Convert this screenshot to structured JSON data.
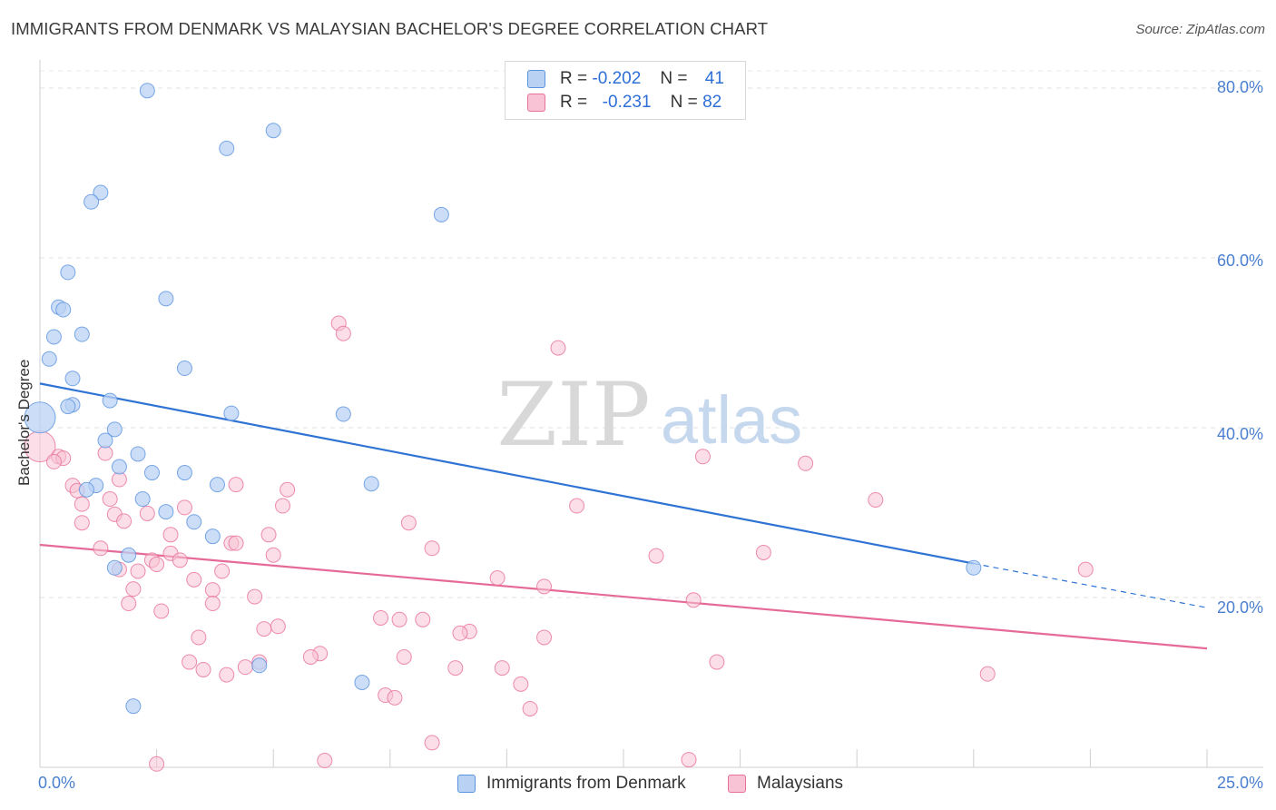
{
  "title": "IMMIGRANTS FROM DENMARK VS MALAYSIAN BACHELOR'S DEGREE CORRELATION CHART",
  "source": "Source: ZipAtlas.com",
  "watermark": {
    "zip": "ZIP",
    "atlas": "atlas"
  },
  "colors": {
    "blue": "#5b93e0",
    "blue_fill": "#b9d2f4",
    "pink": "#e8709b",
    "pink_fill": "#f8c3d4",
    "tick_text": "#4a7fd0"
  },
  "legend": {
    "rows": [
      {
        "r_label": "R =",
        "r_value": "-0.202",
        "n_label": "N =",
        "n_value": "41"
      },
      {
        "r_label": "R =",
        "r_value": "-0.231",
        "n_label": "N =",
        "n_value": "82"
      }
    ]
  },
  "bottom_legend": {
    "blue": "Immigrants from Denmark",
    "pink": "Malaysians"
  },
  "chart_data": {
    "type": "scatter",
    "title": "IMMIGRANTS FROM DENMARK VS MALAYSIAN BACHELOR'S DEGREE CORRELATION CHART",
    "xlabel": "",
    "ylabel": "Bachelor's Degree",
    "xlim": [
      0,
      25
    ],
    "ylim": [
      0,
      80
    ],
    "x_tick_labels": [
      "0.0%",
      "25.0%"
    ],
    "y_tick_labels": [
      "80.0%",
      "60.0%",
      "40.0%",
      "20.0%"
    ],
    "y_ticks": [
      80,
      60,
      40,
      20
    ],
    "grid": true,
    "series": [
      {
        "name": "Immigrants from Denmark",
        "color": "#5b93e0",
        "r": -0.202,
        "n": 41,
        "trend": {
          "x0": 0,
          "y0": 45.2,
          "x1": 20.0,
          "y1": 24.0,
          "dash_to_x": 25,
          "dash_to_y": 18.8
        },
        "points": [
          [
            2.3,
            79.7
          ],
          [
            5.0,
            75.0
          ],
          [
            4.0,
            72.9
          ],
          [
            1.3,
            67.7
          ],
          [
            1.1,
            66.6
          ],
          [
            8.6,
            65.1
          ],
          [
            0.6,
            58.3
          ],
          [
            2.7,
            55.2
          ],
          [
            0.4,
            54.2
          ],
          [
            0.5,
            53.9
          ],
          [
            0.9,
            51.0
          ],
          [
            0.3,
            50.7
          ],
          [
            0.2,
            48.1
          ],
          [
            3.1,
            47.0
          ],
          [
            0.7,
            45.8
          ],
          [
            1.5,
            43.2
          ],
          [
            0.7,
            42.7
          ],
          [
            0.6,
            42.5
          ],
          [
            4.1,
            41.7
          ],
          [
            6.5,
            41.6
          ],
          [
            0.0,
            41.2
          ],
          [
            1.6,
            39.8
          ],
          [
            1.4,
            38.5
          ],
          [
            2.1,
            36.9
          ],
          [
            1.7,
            35.4
          ],
          [
            2.4,
            34.7
          ],
          [
            3.1,
            34.7
          ],
          [
            3.8,
            33.3
          ],
          [
            7.1,
            33.4
          ],
          [
            1.2,
            33.2
          ],
          [
            1.0,
            32.7
          ],
          [
            2.2,
            31.6
          ],
          [
            2.7,
            30.1
          ],
          [
            3.3,
            28.9
          ],
          [
            3.7,
            27.2
          ],
          [
            1.9,
            25.0
          ],
          [
            1.6,
            23.5
          ],
          [
            20.0,
            23.5
          ],
          [
            4.7,
            12.0
          ],
          [
            6.9,
            10.0
          ],
          [
            2.0,
            7.2
          ]
        ]
      },
      {
        "name": "Malaysians",
        "color": "#e8709b",
        "r": -0.231,
        "n": 82,
        "trend": {
          "x0": 0,
          "y0": 26.2,
          "x1": 25,
          "y1": 14.0
        },
        "points": [
          [
            6.4,
            52.3
          ],
          [
            6.5,
            51.1
          ],
          [
            11.1,
            49.4
          ],
          [
            0.0,
            37.8
          ],
          [
            1.4,
            37.0
          ],
          [
            0.4,
            36.6
          ],
          [
            0.5,
            36.4
          ],
          [
            0.3,
            36.0
          ],
          [
            14.2,
            36.6
          ],
          [
            16.4,
            35.8
          ],
          [
            0.7,
            33.2
          ],
          [
            1.7,
            33.9
          ],
          [
            4.2,
            33.3
          ],
          [
            5.3,
            32.7
          ],
          [
            0.8,
            32.6
          ],
          [
            1.5,
            31.6
          ],
          [
            0.9,
            31.0
          ],
          [
            11.5,
            30.8
          ],
          [
            3.1,
            30.6
          ],
          [
            5.2,
            30.8
          ],
          [
            17.9,
            31.5
          ],
          [
            2.3,
            29.9
          ],
          [
            1.6,
            29.8
          ],
          [
            1.8,
            29.0
          ],
          [
            0.9,
            28.8
          ],
          [
            7.9,
            28.8
          ],
          [
            2.8,
            27.4
          ],
          [
            4.9,
            27.4
          ],
          [
            4.1,
            26.4
          ],
          [
            4.2,
            26.4
          ],
          [
            1.3,
            25.8
          ],
          [
            8.4,
            25.8
          ],
          [
            2.8,
            25.2
          ],
          [
            5.0,
            25.0
          ],
          [
            3.0,
            24.4
          ],
          [
            2.4,
            24.4
          ],
          [
            2.5,
            23.9
          ],
          [
            13.2,
            24.9
          ],
          [
            15.5,
            25.3
          ],
          [
            1.7,
            23.3
          ],
          [
            3.9,
            23.1
          ],
          [
            22.4,
            23.3
          ],
          [
            2.1,
            23.1
          ],
          [
            3.3,
            22.1
          ],
          [
            9.8,
            22.3
          ],
          [
            10.8,
            21.3
          ],
          [
            3.7,
            20.9
          ],
          [
            2.0,
            21.0
          ],
          [
            4.6,
            20.1
          ],
          [
            14.0,
            19.7
          ],
          [
            1.9,
            19.3
          ],
          [
            3.7,
            19.3
          ],
          [
            2.6,
            18.4
          ],
          [
            7.3,
            17.6
          ],
          [
            7.7,
            17.4
          ],
          [
            8.2,
            17.4
          ],
          [
            5.1,
            16.6
          ],
          [
            4.8,
            16.3
          ],
          [
            9.2,
            16.0
          ],
          [
            9.0,
            15.8
          ],
          [
            3.4,
            15.3
          ],
          [
            10.8,
            15.3
          ],
          [
            6.0,
            13.4
          ],
          [
            5.8,
            13.0
          ],
          [
            7.8,
            13.0
          ],
          [
            3.2,
            12.4
          ],
          [
            4.7,
            12.4
          ],
          [
            4.4,
            11.8
          ],
          [
            8.9,
            11.7
          ],
          [
            9.9,
            11.7
          ],
          [
            14.5,
            12.4
          ],
          [
            20.3,
            11.0
          ],
          [
            3.5,
            11.5
          ],
          [
            4.0,
            10.9
          ],
          [
            10.3,
            9.8
          ],
          [
            7.4,
            8.5
          ],
          [
            7.6,
            8.2
          ],
          [
            10.5,
            6.9
          ],
          [
            8.4,
            2.9
          ],
          [
            6.1,
            0.8
          ],
          [
            13.9,
            0.9
          ],
          [
            2.5,
            0.4
          ]
        ]
      }
    ]
  }
}
